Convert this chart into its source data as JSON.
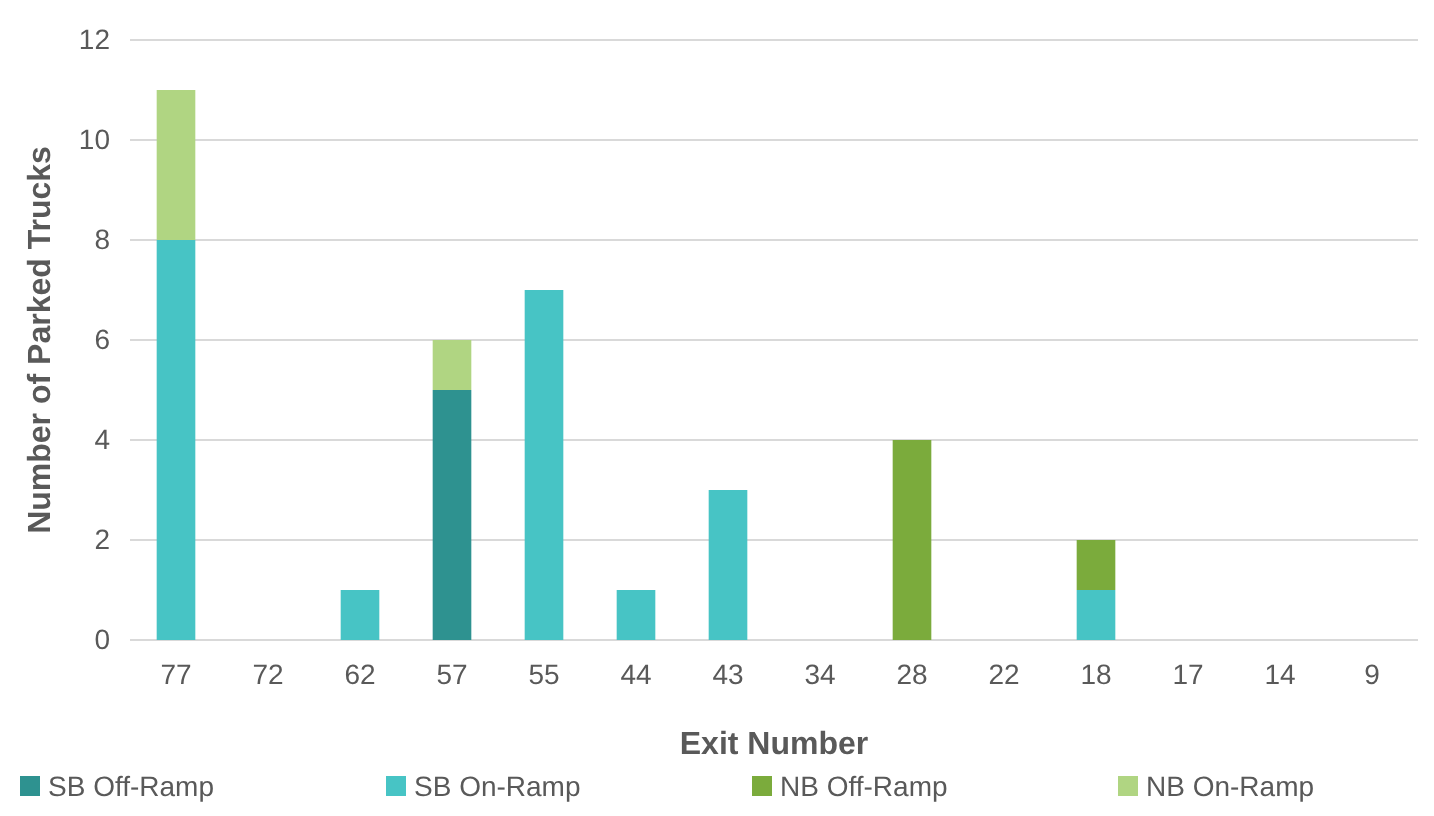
{
  "chart_data": {
    "type": "bar",
    "stacked": true,
    "xlabel": "Exit Number",
    "ylabel": "Number of Parked Trucks",
    "categories": [
      "77",
      "72",
      "62",
      "57",
      "55",
      "44",
      "43",
      "34",
      "28",
      "22",
      "18",
      "17",
      "14",
      "9"
    ],
    "series": [
      {
        "name": "SB Off-Ramp",
        "color": "#2e9290",
        "values": [
          0,
          0,
          0,
          5,
          0,
          0,
          0,
          0,
          0,
          0,
          0,
          0,
          0,
          0
        ]
      },
      {
        "name": "SB On-Ramp",
        "color": "#47c4c5",
        "values": [
          8,
          0,
          1,
          0,
          7,
          1,
          3,
          0,
          0,
          0,
          1,
          0,
          0,
          0
        ]
      },
      {
        "name": "NB Off-Ramp",
        "color": "#7bab3c",
        "values": [
          0,
          0,
          0,
          0,
          0,
          0,
          0,
          0,
          4,
          0,
          1,
          0,
          0,
          0
        ]
      },
      {
        "name": "NB On-Ramp",
        "color": "#b0d582",
        "values": [
          3,
          0,
          0,
          1,
          0,
          0,
          0,
          0,
          0,
          0,
          0,
          0,
          0,
          0
        ]
      }
    ],
    "ylim": [
      0,
      12
    ],
    "yticks": [
      0,
      2,
      4,
      6,
      8,
      10,
      12
    ],
    "grid": "y",
    "legend": "bottom"
  }
}
